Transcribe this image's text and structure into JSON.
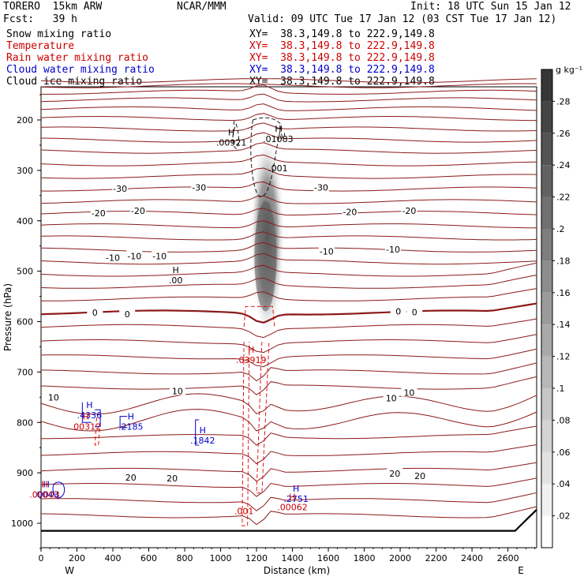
{
  "header": {
    "model": "TORERO  15km ARW",
    "org": "NCAR/MMM",
    "init": "Init: 18 UTC Sun 15 Jan 12",
    "fcst": "Fcst:   39 h",
    "valid": "Valid: 09 UTC Tue 17 Jan 12 (03 CST Tue 17 Jan 12)"
  },
  "fields": [
    {
      "name": "Snow mixing ratio",
      "xy": "XY=  38.3,149.8 to 222.9,149.8",
      "color": "#000000"
    },
    {
      "name": "Temperature",
      "xy": "XY=  38.3,149.8 to 222.9,149.8",
      "color": "#cc0000"
    },
    {
      "name": "Rain water mixing ratio",
      "xy": "XY=  38.3,149.8 to 222.9,149.8",
      "color": "#cc0000"
    },
    {
      "name": "Cloud water mixing ratio",
      "xy": "XY=  38.3,149.8 to 222.9,149.8",
      "color": "#0000cc"
    },
    {
      "name": "Cloud ice mixing ratio",
      "xy": "XY=  38.3,149.8 to 222.9,149.8",
      "color": "#000000"
    }
  ],
  "colorbar": {
    "unit": "g kg⁻¹",
    "ticks": [
      ".02",
      ".04",
      ".06",
      ".08",
      ".1",
      ".12",
      ".14",
      ".16",
      ".18",
      ".2",
      ".22",
      ".24",
      ".26",
      ".28"
    ]
  },
  "chart_data": {
    "type": "contour-cross-section",
    "xlabel": "Distance (km)",
    "ylabel": "Pressure (hPa)",
    "x_ticks": [
      0,
      200,
      400,
      600,
      800,
      1000,
      1200,
      1400,
      1600,
      1800,
      2000,
      2200,
      2400,
      2600
    ],
    "y_ticks": [
      200,
      300,
      400,
      500,
      600,
      700,
      800,
      900,
      1000
    ],
    "xlim": [
      0,
      2760
    ],
    "ylim": [
      1050,
      110
    ],
    "x_end_labels": {
      "left": "W",
      "right": "E"
    },
    "temperature_contour_labels": [
      {
        "text": "-30",
        "x": 440,
        "p": 336
      },
      {
        "text": "-30",
        "x": 880,
        "p": 334
      },
      {
        "text": "-30",
        "x": 1560,
        "p": 334
      },
      {
        "text": "-20",
        "x": 320,
        "p": 385
      },
      {
        "text": "-20",
        "x": 540,
        "p": 380
      },
      {
        "text": "-20",
        "x": 1720,
        "p": 382
      },
      {
        "text": "-20",
        "x": 2050,
        "p": 380
      },
      {
        "text": "-10",
        "x": 400,
        "p": 473
      },
      {
        "text": "-10",
        "x": 520,
        "p": 470
      },
      {
        "text": "-10",
        "x": 660,
        "p": 470
      },
      {
        "text": "-10",
        "x": 1590,
        "p": 461
      },
      {
        "text": "-10",
        "x": 1960,
        "p": 457
      },
      {
        "text": "0",
        "x": 300,
        "p": 582
      },
      {
        "text": "0",
        "x": 480,
        "p": 585
      },
      {
        "text": "0",
        "x": 1990,
        "p": 580
      },
      {
        "text": "0",
        "x": 2080,
        "p": 581
      },
      {
        "text": "10",
        "x": 70,
        "p": 750
      },
      {
        "text": "10",
        "x": 760,
        "p": 738
      },
      {
        "text": "10",
        "x": 1950,
        "p": 752
      },
      {
        "text": "10",
        "x": 2050,
        "p": 741
      },
      {
        "text": "20",
        "x": 500,
        "p": 909
      },
      {
        "text": "20",
        "x": 730,
        "p": 911
      },
      {
        "text": "20",
        "x": 1970,
        "p": 901
      },
      {
        "text": "20",
        "x": 2110,
        "p": 906
      }
    ],
    "maxima_labels": [
      {
        "h": "H",
        "value": ".00921",
        "x": 1060,
        "p": 237,
        "color": "#000000"
      },
      {
        "h": "H",
        "value": ".01083",
        "x": 1320,
        "p": 230,
        "color": "#000000"
      },
      {
        "h": "",
        "value": ".001",
        "x": 1320,
        "p": 288,
        "color": "#000000"
      },
      {
        "h": "H",
        "value": ".00",
        "x": 750,
        "p": 510,
        "color": "#000000"
      },
      {
        "h": "H",
        "value": ".03919",
        "x": 1170,
        "p": 668,
        "color": "#cc0000"
      },
      {
        "h": "H",
        "value": ".4336",
        "x": 270,
        "p": 778,
        "color": "#0000cc"
      },
      {
        "h": "H",
        "value": ".00312",
        "x": 250,
        "p": 800,
        "color": "#cc0000"
      },
      {
        "h": "H",
        "value": ".2185",
        "x": 500,
        "p": 800,
        "color": "#0000cc"
      },
      {
        "h": "H",
        "value": ".1842",
        "x": 900,
        "p": 828,
        "color": "#0000cc"
      },
      {
        "h": "H",
        "value": ".0043",
        "x": 30,
        "p": 935,
        "color": "#0000cc"
      },
      {
        "h": "H",
        "value": ".00003",
        "x": 20,
        "p": 935,
        "color": "#cc0000"
      },
      {
        "h": "H",
        "value": ".2751",
        "x": 1420,
        "p": 944,
        "color": "#0000cc"
      },
      {
        "h": "H",
        "value": ".00062",
        "x": 1400,
        "p": 960,
        "color": "#cc0000"
      },
      {
        "h": "",
        "value": ".001",
        "x": 1130,
        "p": 968,
        "color": "#cc0000"
      }
    ]
  }
}
